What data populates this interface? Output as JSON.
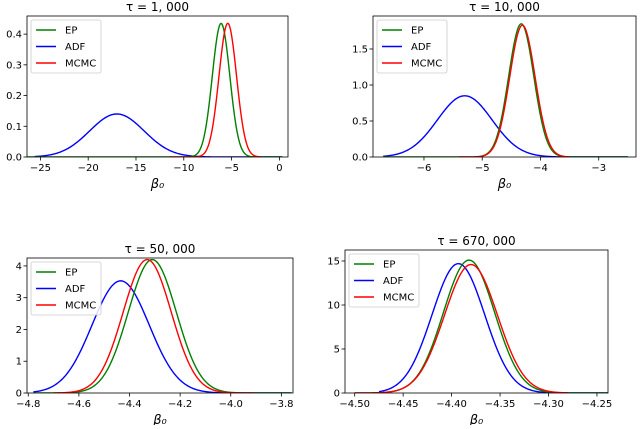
{
  "chart_data": [
    {
      "type": "line",
      "title": "τ = 1, 000",
      "xlabel": "β₀",
      "ylabel": "",
      "xlim": [
        -26.4,
        0.9
      ],
      "ylim": [
        0,
        0.459
      ],
      "xticks": [
        -25,
        -20,
        -15,
        -10,
        -5,
        0
      ],
      "xtick_labels": [
        "−25",
        "−20",
        "−15",
        "−10",
        "−5",
        "0"
      ],
      "yticks": [
        0.0,
        0.1,
        0.2,
        0.3,
        0.4
      ],
      "ytick_labels": [
        "0.0",
        "0.1",
        "0.2",
        "0.3",
        "0.4"
      ],
      "grid": false,
      "legend": "top-left",
      "series": [
        {
          "name": "EP",
          "color": "#008000",
          "peak_x": -6.1,
          "peak_y": 0.435,
          "x_range": [
            -26.4,
            0.3
          ]
        },
        {
          "name": "ADF",
          "color": "#0000ff",
          "peak_x": -17.0,
          "peak_y": 0.14,
          "x_range": [
            -25.6,
            0.3
          ]
        },
        {
          "name": "MCMC",
          "color": "#ff0000",
          "peak_x": -5.4,
          "peak_y": 0.435,
          "x_range": [
            -11.5,
            -2.0
          ]
        }
      ]
    },
    {
      "type": "line",
      "title": "τ = 10, 000",
      "xlabel": "β₀",
      "ylabel": "",
      "xlim": [
        -6.875,
        -2.36
      ],
      "ylim": [
        0,
        1.958
      ],
      "xticks": [
        -6,
        -5,
        -4,
        -3
      ],
      "xtick_labels": [
        "−6",
        "−5",
        "−4",
        "−3"
      ],
      "yticks": [
        0.0,
        0.5,
        1.0,
        1.5
      ],
      "ytick_labels": [
        "0.0",
        "0.5",
        "1.0",
        "1.5"
      ],
      "grid": false,
      "legend": "top-left",
      "series": [
        {
          "name": "EP",
          "color": "#008000",
          "peak_x": -4.33,
          "peak_y": 1.85,
          "x_range": [
            -6.7,
            -2.5
          ]
        },
        {
          "name": "ADF",
          "color": "#0000ff",
          "peak_x": -5.3,
          "peak_y": 0.85,
          "x_range": [
            -6.7,
            -2.5
          ]
        },
        {
          "name": "MCMC",
          "color": "#ff0000",
          "peak_x": -4.31,
          "peak_y": 1.83,
          "x_range": [
            -5.4,
            -3.5
          ]
        }
      ]
    },
    {
      "type": "line",
      "title": "τ = 50, 000",
      "xlabel": "β₀",
      "ylabel": "",
      "xlim": [
        -4.805,
        -3.754
      ],
      "ylim": [
        0,
        4.25
      ],
      "xticks": [
        -4.8,
        -4.6,
        -4.4,
        -4.2,
        -4.0,
        -3.8
      ],
      "xtick_labels": [
        "−4.8",
        "−4.6",
        "−4.4",
        "−4.2",
        "−4.0",
        "−3.8"
      ],
      "yticks": [
        0,
        1,
        2,
        3,
        4
      ],
      "ytick_labels": [
        "0",
        "1",
        "2",
        "3",
        "4"
      ],
      "grid": false,
      "legend": "top-left",
      "series": [
        {
          "name": "EP",
          "color": "#008000",
          "peak_x": -4.31,
          "peak_y": 4.2,
          "x_range": [
            -4.78,
            -3.76
          ]
        },
        {
          "name": "ADF",
          "color": "#0000ff",
          "peak_x": -4.435,
          "peak_y": 3.53,
          "x_range": [
            -4.78,
            -3.76
          ]
        },
        {
          "name": "MCMC",
          "color": "#ff0000",
          "peak_x": -4.33,
          "peak_y": 4.2,
          "x_range": [
            -4.7,
            -3.91
          ]
        }
      ]
    },
    {
      "type": "line",
      "title": "τ = 670, 000",
      "xlabel": "β₀",
      "ylabel": "",
      "xlim": [
        -4.51,
        -4.2386
      ],
      "ylim": [
        0,
        16.25
      ],
      "xticks": [
        -4.5,
        -4.45,
        -4.4,
        -4.35,
        -4.3,
        -4.25
      ],
      "xtick_labels": [
        "−4.50",
        "−4.45",
        "−4.40",
        "−4.35",
        "−4.30",
        "−4.25"
      ],
      "yticks": [
        0,
        5,
        10,
        15
      ],
      "ytick_labels": [
        "0",
        "5",
        "10",
        "15"
      ],
      "grid": false,
      "legend": "top-left",
      "series": [
        {
          "name": "EP",
          "color": "#008000",
          "peak_x": -4.382,
          "peak_y": 15.1,
          "x_range": [
            -4.5,
            -4.23
          ]
        },
        {
          "name": "ADF",
          "color": "#0000ff",
          "peak_x": -4.393,
          "peak_y": 14.7,
          "x_range": [
            -4.475,
            -4.23
          ]
        },
        {
          "name": "MCMC",
          "color": "#ff0000",
          "peak_x": -4.38,
          "peak_y": 14.6,
          "x_range": [
            -4.5,
            -4.28
          ]
        }
      ]
    }
  ]
}
